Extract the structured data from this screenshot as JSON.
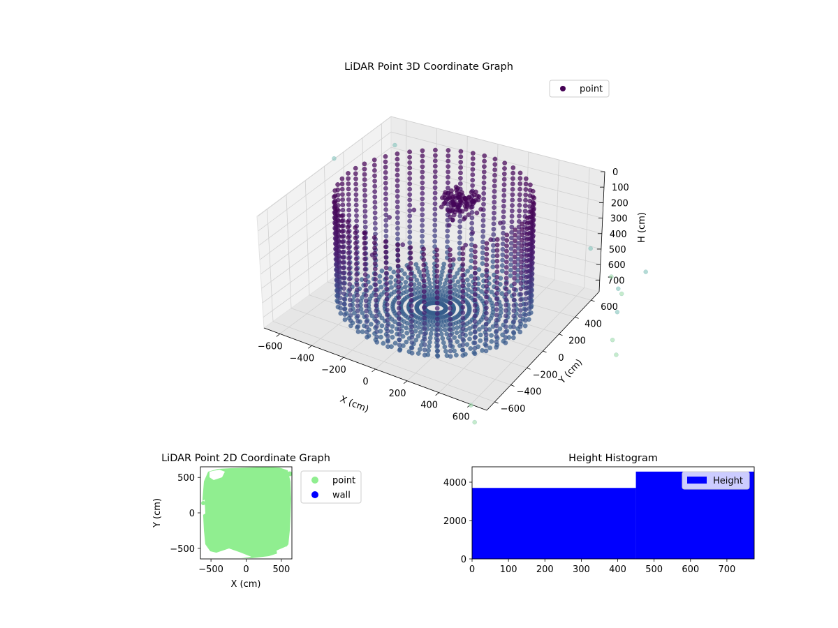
{
  "chart_data": [
    {
      "type": "scatter",
      "projection": "3d",
      "title": "LiDAR Point 3D Coordinate Graph",
      "xlabel": "X (cm)",
      "ylabel": "Y (cm)",
      "zlabel": "H (cm)",
      "xlim": [
        -700,
        700
      ],
      "ylim": [
        -700,
        700
      ],
      "zlim": [
        0,
        775
      ],
      "z_inverted": true,
      "xticks": [
        -600,
        -400,
        -200,
        0,
        200,
        400,
        600
      ],
      "yticks": [
        -600,
        -400,
        -200,
        0,
        200,
        400,
        600
      ],
      "zticks": [
        0,
        100,
        200,
        300,
        400,
        500,
        600,
        700
      ],
      "grid": true,
      "legend": {
        "position": "top-right",
        "entries": [
          {
            "label": "point",
            "color": "#440154"
          }
        ]
      },
      "colormap": "viridis",
      "series": [
        {
          "name": "point",
          "description_of_structure": "cylindrical room shell with 48 vertical columns of points on radius ~550 from H 0 to 700, floor fan at H ~700, and dense cluster near center at H 0-200",
          "ring": {
            "radius": 550,
            "columns": 48,
            "h_start": 0,
            "h_end": 700,
            "h_step": 35
          },
          "floor_rays": {
            "count": 60,
            "h": 720,
            "r_start": 60,
            "r_end": 540,
            "r_step": 45
          },
          "cluster": {
            "x": 80,
            "y": 150,
            "h": 80,
            "spread": 90,
            "count": 90
          },
          "scattered": [
            [
              -250,
              200,
              250
            ],
            [
              -150,
              -100,
              300
            ],
            [
              100,
              250,
              320
            ],
            [
              -300,
              -250,
              200
            ],
            [
              200,
              -150,
              260
            ],
            [
              -80,
              300,
              350
            ],
            [
              150,
              80,
              300
            ],
            [
              -350,
              100,
              280
            ],
            [
              300,
              100,
              230
            ],
            [
              0,
              -300,
              300
            ],
            [
              -200,
              -350,
              260
            ],
            [
              250,
              300,
              240
            ]
          ],
          "outliers": [
            [
              900,
              550,
              620
            ],
            [
              950,
              450,
              700
            ],
            [
              850,
              700,
              750
            ],
            [
              700,
              850,
              760
            ],
            [
              1000,
              300,
              780
            ],
            [
              -800,
              900,
              300
            ],
            [
              1050,
              600,
              500
            ],
            [
              500,
              950,
              680
            ],
            [
              1100,
              150,
              760
            ],
            [
              -950,
              500,
              250
            ],
            [
              600,
              -700,
              780
            ],
            [
              700,
              -850,
              770
            ]
          ]
        }
      ]
    },
    {
      "type": "scatter",
      "title": "LiDAR Point 2D Coordinate Graph",
      "xlabel": "X (cm)",
      "ylabel": "Y (cm)",
      "xlim": [
        -650,
        650
      ],
      "ylim": [
        -650,
        650
      ],
      "xticks": [
        -500,
        0,
        500
      ],
      "yticks": [
        -500,
        0,
        500
      ],
      "legend": {
        "position": "outside-right",
        "entries": [
          {
            "label": "point",
            "color": "#90ee90"
          },
          {
            "label": "wall",
            "color": "#0000ff"
          }
        ]
      },
      "series": [
        {
          "name": "point",
          "color": "#90ee90",
          "shape": "filled-disc",
          "radius": 600
        },
        {
          "name": "wall",
          "color": "#0000ff",
          "values": []
        }
      ]
    },
    {
      "type": "bar",
      "subtype": "histogram",
      "title": "Height Histogram",
      "xlim": [
        0,
        775
      ],
      "ylim": [
        0,
        4800
      ],
      "xticks": [
        0,
        100,
        200,
        300,
        400,
        500,
        600,
        700
      ],
      "yticks": [
        0,
        2000,
        4000
      ],
      "bin_edges": [
        0,
        450,
        775
      ],
      "values": [
        3700,
        4550
      ],
      "color": "#0000ff",
      "legend": {
        "position": "top-right",
        "entries": [
          {
            "label": "Height",
            "color": "#0000ff"
          }
        ]
      }
    }
  ]
}
